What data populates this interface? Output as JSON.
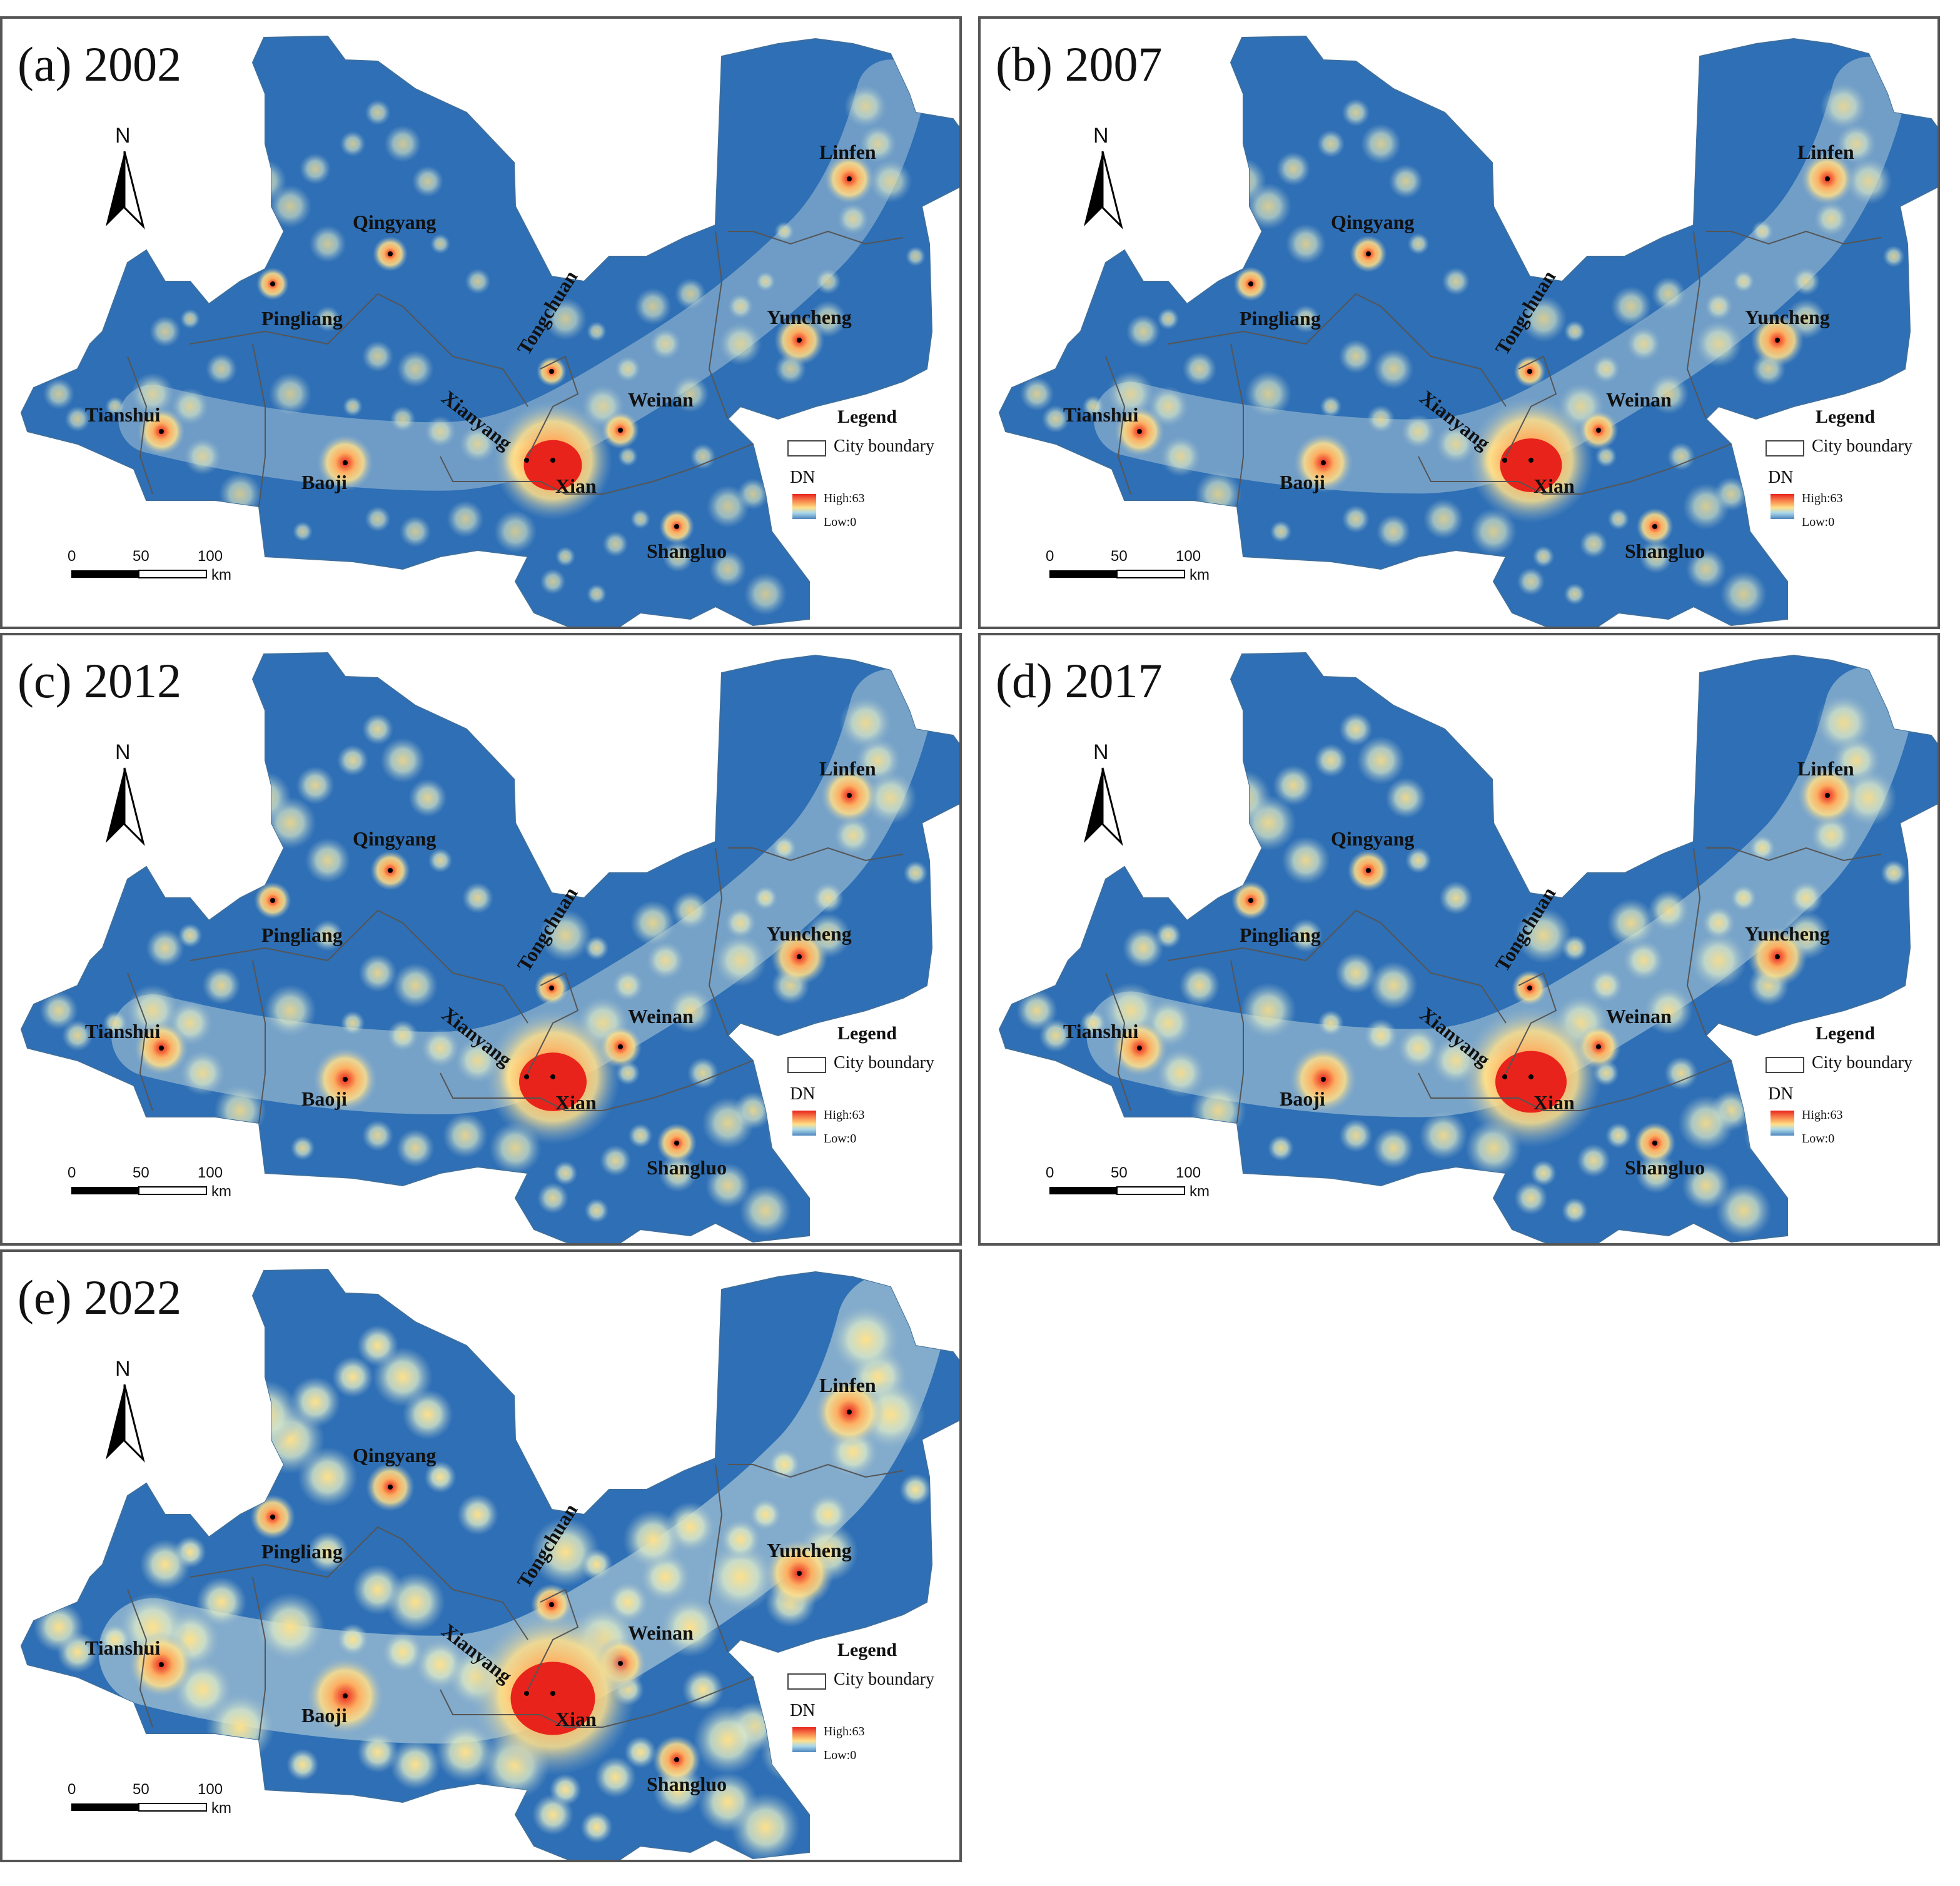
{
  "panels": [
    {
      "title": "(a) 2002",
      "year": 2002
    },
    {
      "title": "(b) 2007",
      "year": 2007
    },
    {
      "title": "(c)  2012",
      "year": 2012
    },
    {
      "title": "(d) 2017",
      "year": 2017
    },
    {
      "title": "(e) 2022",
      "year": 2022
    }
  ],
  "north_label": "N",
  "scale_bar": {
    "ticks": [
      "0",
      "50",
      "100"
    ],
    "unit": "km"
  },
  "legend": {
    "title": "Legend",
    "boundary_label": "City boundary",
    "dn_label": "DN",
    "high_label": "High:63",
    "low_label": "Low:0"
  },
  "cities": [
    {
      "id": "linfen",
      "name": "Linfen"
    },
    {
      "id": "qingyang",
      "name": "Qingyang"
    },
    {
      "id": "pingliang",
      "name": "Pingliang"
    },
    {
      "id": "tongchuan",
      "name": "Tongchuan"
    },
    {
      "id": "yuncheng",
      "name": "Yuncheng"
    },
    {
      "id": "weinan",
      "name": "Weinan"
    },
    {
      "id": "tianshui",
      "name": "Tianshui"
    },
    {
      "id": "xianyang",
      "name": "Xianyang"
    },
    {
      "id": "baoji",
      "name": "Baoji"
    },
    {
      "id": "xian",
      "name": "Xian"
    },
    {
      "id": "shangluo",
      "name": "Shangluo"
    }
  ],
  "colors": {
    "background_dark": "#2e6fb5",
    "background_light": "#8fb3cf",
    "glow_yellow": "#fee08b",
    "core_red": "#e8231b",
    "boundary_line": "#555555"
  }
}
